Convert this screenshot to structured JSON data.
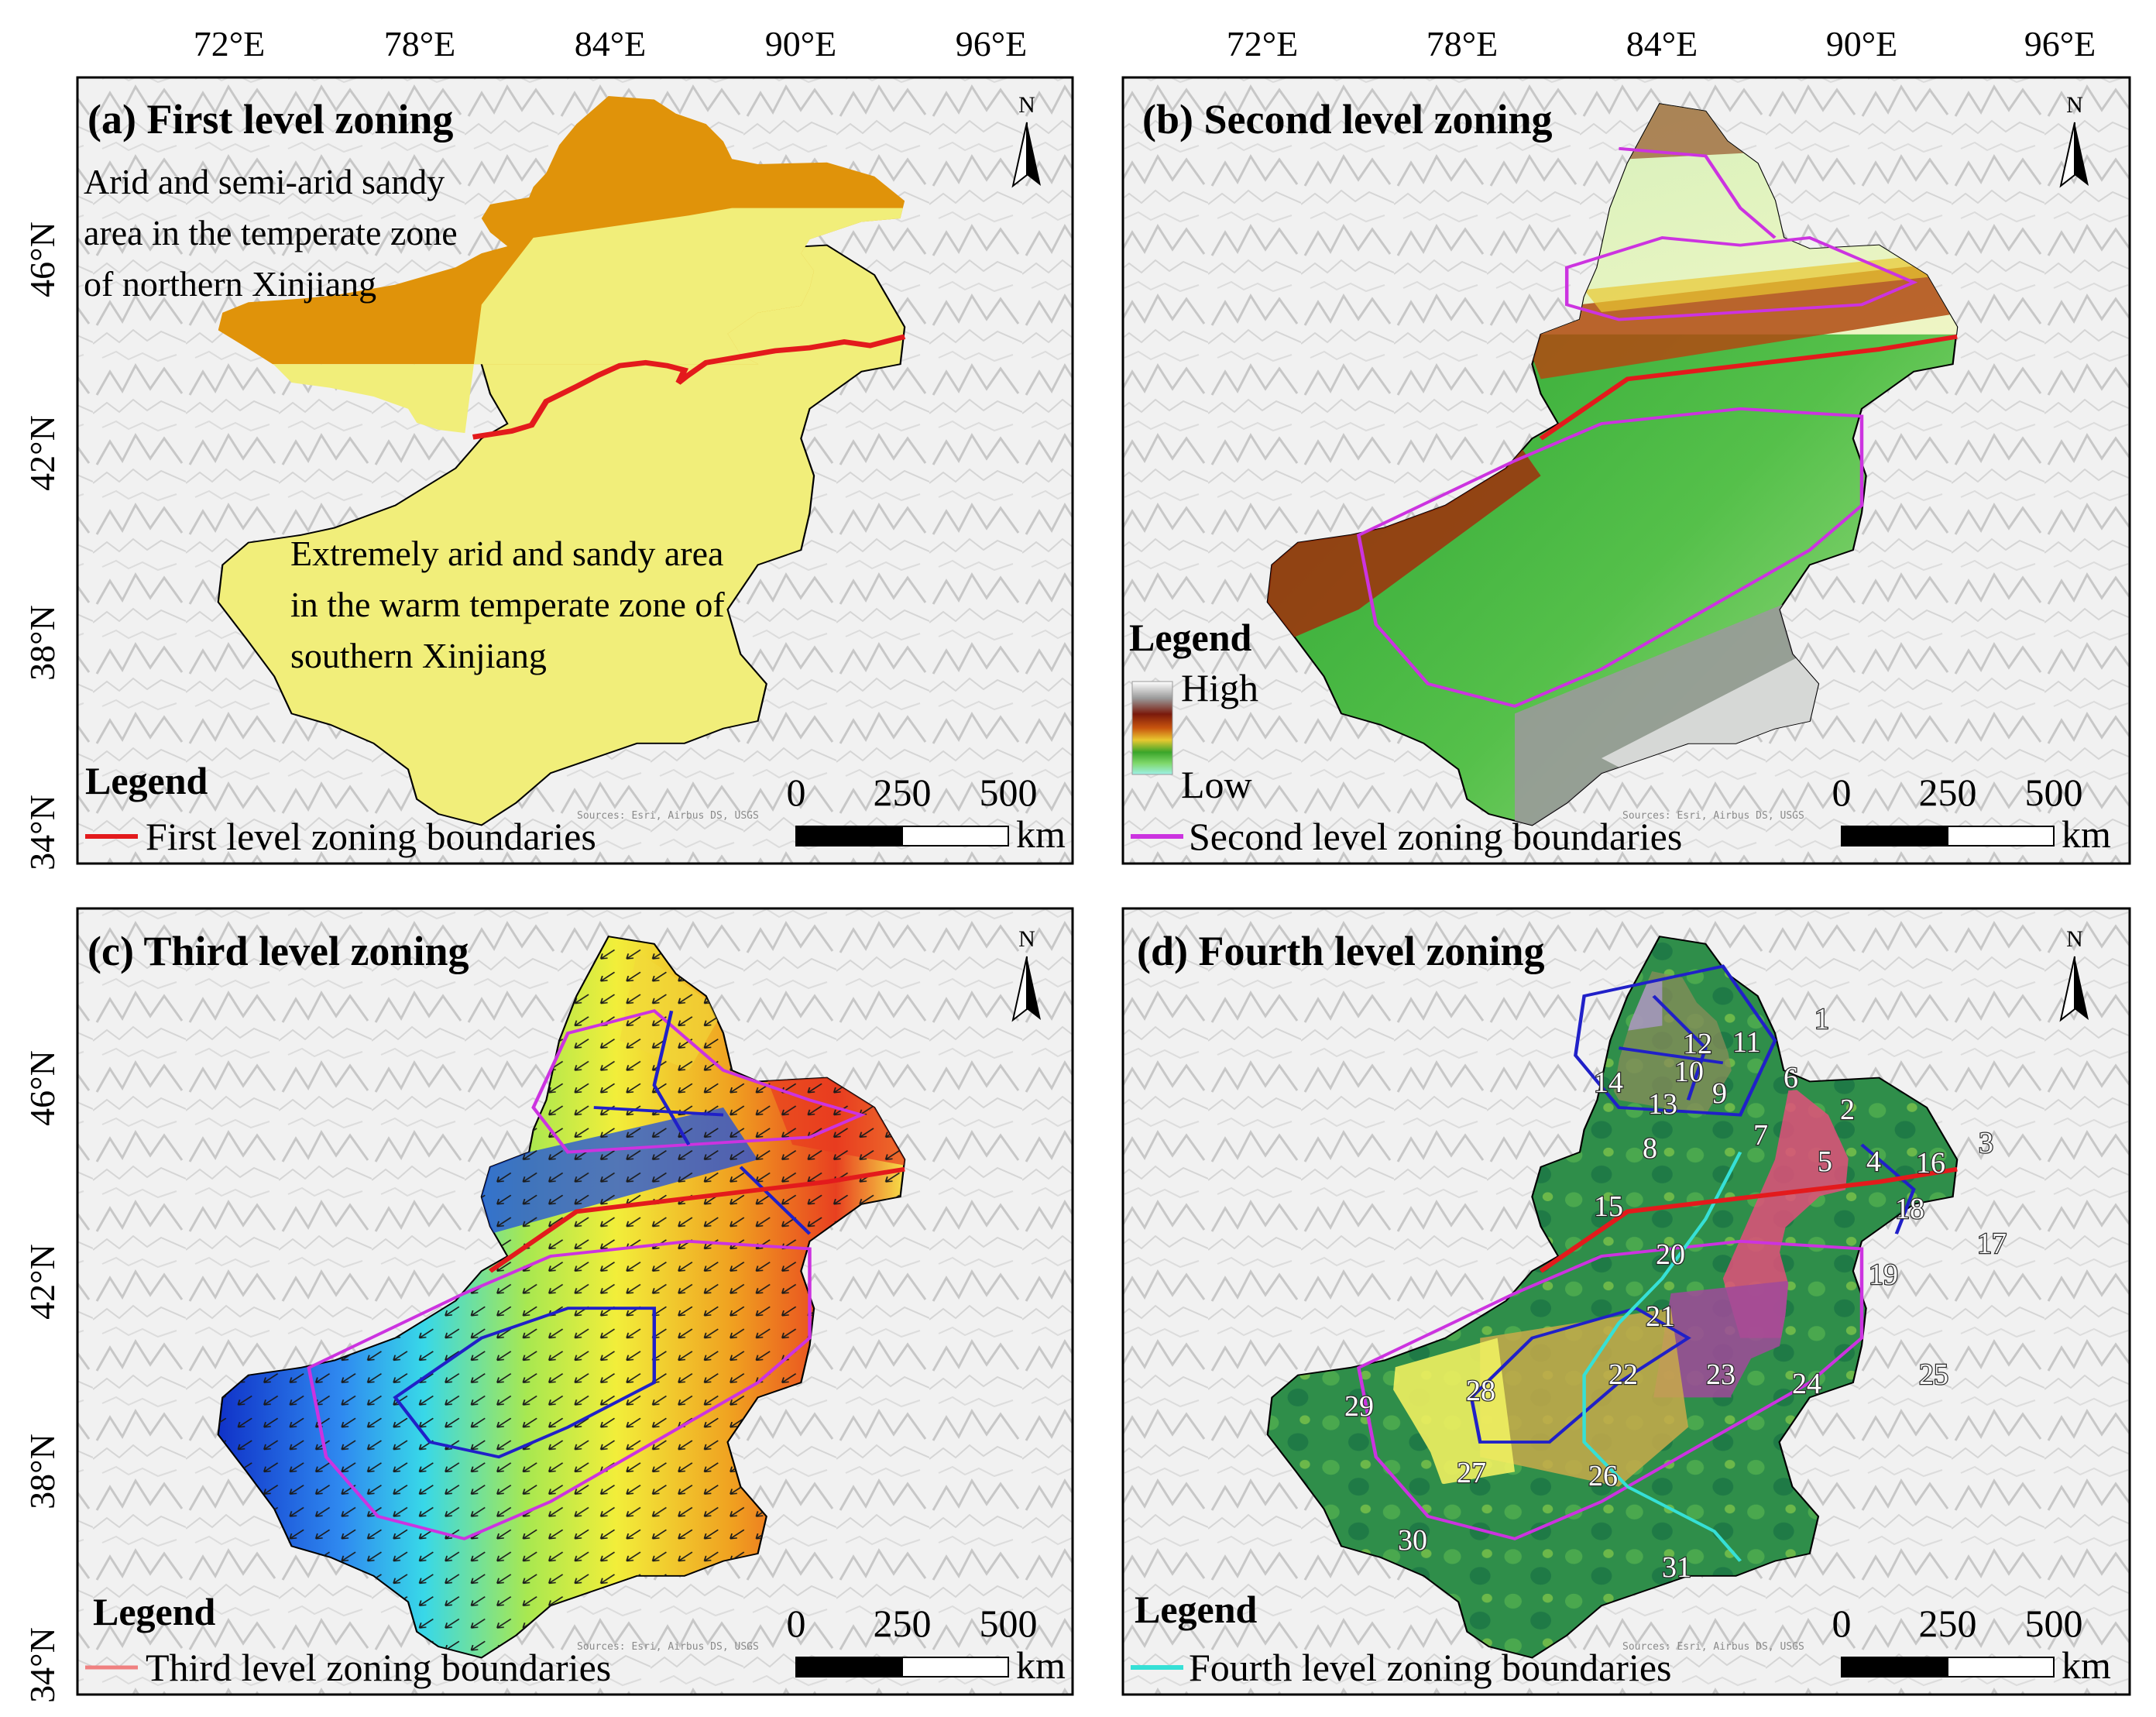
{
  "longitude_labels": [
    "72°E",
    "78°E",
    "84°E",
    "90°E",
    "96°E"
  ],
  "latitude_labels": [
    "46°N",
    "42°N",
    "38°N",
    "34°N"
  ],
  "north_arrow_label": "N",
  "scale_bar": {
    "values": [
      "0",
      "250",
      "500"
    ],
    "unit": "km"
  },
  "attribution": "Sources: Esri, Airbus DS, USGS",
  "panels": {
    "a": {
      "title": "(a) First level zoning",
      "region_north": [
        "Arid and semi-arid sandy",
        "area in the temperate zone",
        "of northern Xinjiang"
      ],
      "region_south": [
        "Extremely arid and sandy area",
        "in the warm temperate zone of",
        "southern Xinjiang"
      ],
      "legend_title": "Legend",
      "legend_item": "First level zoning boundaries",
      "colors": {
        "north": "#e0930a",
        "south": "#f1ee7a",
        "boundary": "#e31a1c"
      }
    },
    "b": {
      "title": "(b) Second level zoning",
      "legend_title": "Legend",
      "ramp_high": "High",
      "ramp_low": "Low",
      "legend_item": "Second level zoning boundaries",
      "colors": {
        "boundary": "#cc33e0"
      }
    },
    "c": {
      "title": "(c) Third level zoning",
      "legend_title": "Legend",
      "legend_item": "Third level zoning boundaries",
      "colors": {
        "boundary": "#2020c8"
      }
    },
    "d": {
      "title": "(d) Fourth level zoning",
      "legend_title": "Legend",
      "legend_item": "Fourth level zoning boundaries",
      "colors": {
        "boundary": "#36e0d6"
      },
      "zone_labels": [
        "1",
        "2",
        "3",
        "4",
        "5",
        "6",
        "7",
        "8",
        "9",
        "10",
        "11",
        "12",
        "13",
        "14",
        "15",
        "16",
        "17",
        "18",
        "19",
        "20",
        "21",
        "22",
        "23",
        "24",
        "25",
        "26",
        "27",
        "28",
        "29",
        "30",
        "31"
      ]
    }
  }
}
